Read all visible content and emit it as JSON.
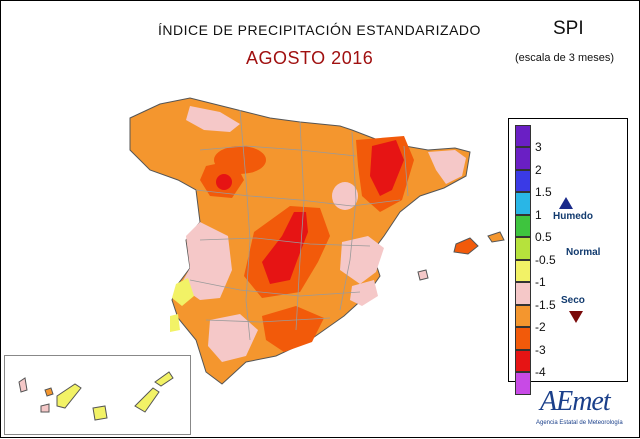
{
  "header": {
    "title": "ÍNDICE DE PRECIPITACIÓN ESTANDARIZADO",
    "subtitle": "AGOSTO 2016",
    "index_name": "SPI",
    "scale_note": "(escala de 3 meses)"
  },
  "legend": {
    "classes": [
      {
        "label": "3",
        "color": "#6a1fc4"
      },
      {
        "label": "2",
        "color": "#3a3ae6"
      },
      {
        "label": "1.5",
        "color": "#29b6e6"
      },
      {
        "label": "1",
        "color": "#3ec43e"
      },
      {
        "label": "0.5",
        "color": "#b6e23c"
      },
      {
        "label": "-0.5",
        "color": "#f2f266"
      },
      {
        "label": "-1",
        "color": "#f5c8c8"
      },
      {
        "label": "-1.5",
        "color": "#f4962e"
      },
      {
        "label": "-2",
        "color": "#f25a0a"
      },
      {
        "label": "-3",
        "color": "#e61414"
      },
      {
        "label": "-4",
        "color": "#c84ae6"
      }
    ],
    "top_class_color": "#6a1fc4",
    "humid_label": "Humedo",
    "normal_label": "Normal",
    "dry_label": "Seco",
    "humid_icon": "triangle-up-icon",
    "dry_icon": "triangle-down-icon"
  },
  "logo": {
    "name": "AEmet",
    "sub": "Agencia Estatal de Meteorología"
  },
  "colors": {
    "mainland_base": "#f4962e",
    "normal": "#f5c8c8",
    "dry_severe": "#f25a0a",
    "dry_extreme": "#e61414",
    "wet_light": "#f2f266",
    "border_lines": "#9a9a9a"
  }
}
